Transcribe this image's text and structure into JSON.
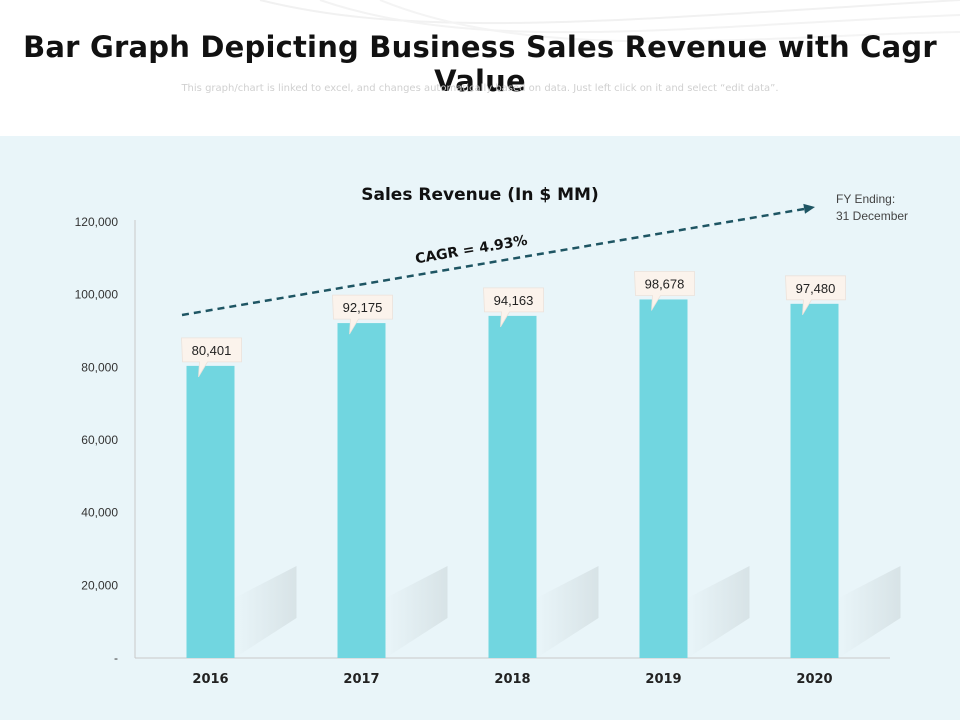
{
  "header": {
    "title": "Bar Graph Depicting Business Sales Revenue with Cagr Value",
    "subtitle": "This graph/chart is linked to excel, and changes automatically based on data. Just left click on it and select “edit data”."
  },
  "colors": {
    "bar": "#71d6e0",
    "trend_arrow": "#1e5563",
    "panel_bg": "#e9f5f9",
    "callout_bg": "#fbf3ec"
  },
  "chart_data": {
    "type": "bar",
    "title": "Sales Revenue (In $ MM)",
    "categories": [
      "2016",
      "2017",
      "2018",
      "2019",
      "2020"
    ],
    "values": [
      80401,
      92175,
      94163,
      98678,
      97480
    ],
    "value_labels": [
      "80,401",
      "92,175",
      "94,163",
      "98,678",
      "97,480"
    ],
    "xlabel": "",
    "ylabel": "",
    "ylim": [
      0,
      120000
    ],
    "yticks": [
      0,
      20000,
      40000,
      60000,
      80000,
      100000,
      120000
    ],
    "ytick_labels": [
      "-",
      "20,000",
      "40,000",
      "60,000",
      "80,000",
      "100,000",
      "120,000"
    ],
    "grid": false,
    "annotations": {
      "cagr_label": "CAGR = 4.93%",
      "fy_line1": "FY Ending:",
      "fy_line2": "31 December"
    }
  }
}
